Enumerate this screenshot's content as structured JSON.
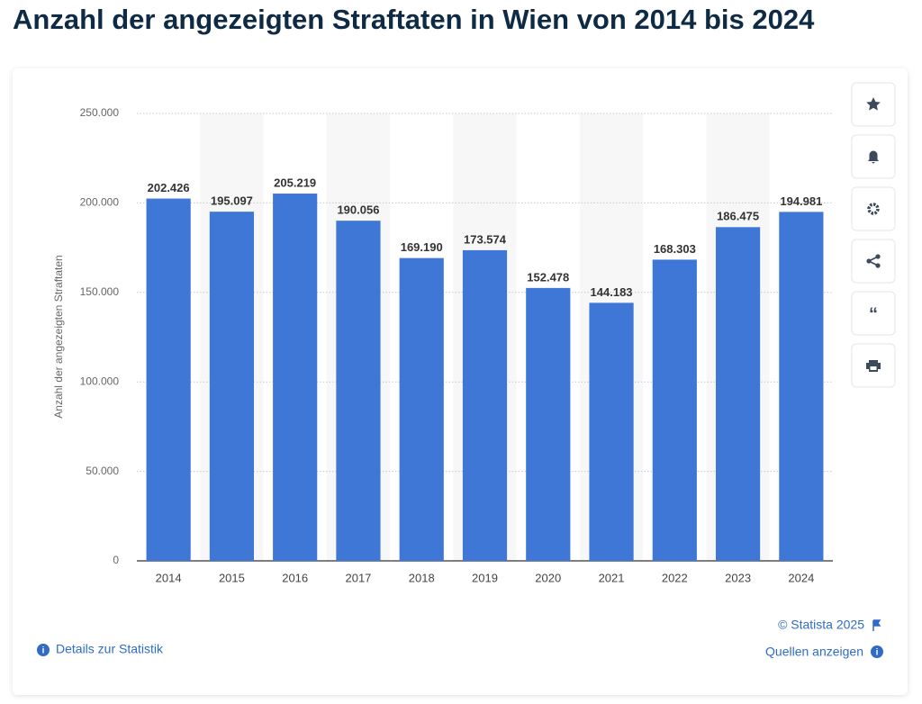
{
  "chart_data": {
    "type": "bar",
    "title": "Anzahl der angezeigten Straftaten in Wien von 2014 bis 2024",
    "y_label": "Anzahl der angezeigten Straftaten",
    "categories": [
      "2014",
      "2015",
      "2016",
      "2017",
      "2018",
      "2019",
      "2020",
      "2021",
      "2022",
      "2023",
      "2024"
    ],
    "values": [
      202426,
      195097,
      205219,
      190056,
      169190,
      173574,
      152478,
      144183,
      168303,
      186475,
      194981
    ],
    "value_labels": [
      "202.426",
      "195.097",
      "205.219",
      "190.056",
      "169.190",
      "173.574",
      "152.478",
      "144.183",
      "168.303",
      "186.475",
      "194.981"
    ],
    "color": "#3f77d7",
    "ylim": [
      0,
      250000
    ],
    "yticks": [
      0,
      {
        "value": 50000,
        "label": "50.000"
      },
      {
        "value": 100000,
        "label": "100.000"
      },
      {
        "value": 150000,
        "label": "150.000"
      },
      {
        "value": 200000,
        "label": "200.000"
      },
      {
        "value": 250000,
        "label": "250.000"
      }
    ],
    "grid": true
  },
  "footer": {
    "copyright": "© Statista 2025",
    "details": "Details zur Statistik",
    "sources": "Quellen anzeigen"
  }
}
